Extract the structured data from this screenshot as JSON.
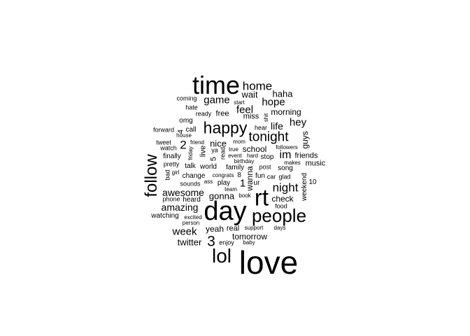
{
  "text_color": "#000000",
  "background_color": "#ffffff",
  "words": [
    {
      "text": "love",
      "weight": 100
    },
    {
      "text": "day",
      "weight": 86
    },
    {
      "text": "time",
      "weight": 80
    },
    {
      "text": "rt",
      "weight": 74
    },
    {
      "text": "lol",
      "weight": 60
    },
    {
      "text": "people",
      "weight": 58
    },
    {
      "text": "follow",
      "weight": 54
    },
    {
      "text": "happy",
      "weight": 48
    },
    {
      "text": "tonight",
      "weight": 40
    },
    {
      "text": "home",
      "weight": 34
    },
    {
      "text": "night",
      "weight": 34
    },
    {
      "text": "3",
      "weight": 34
    },
    {
      "text": "game",
      "weight": 30
    },
    {
      "text": "feel",
      "weight": 30
    },
    {
      "text": "hope",
      "weight": 28
    },
    {
      "text": "awesome",
      "weight": 28
    },
    {
      "text": "amazing",
      "weight": 28
    },
    {
      "text": "week",
      "weight": 28
    },
    {
      "text": "im",
      "weight": 28
    },
    {
      "text": "hey",
      "weight": 28
    },
    {
      "text": "life",
      "weight": 28
    },
    {
      "text": "gonna",
      "weight": 26
    },
    {
      "text": "wait",
      "weight": 26
    },
    {
      "text": "haha",
      "weight": 26
    },
    {
      "text": "twitter",
      "weight": 26
    },
    {
      "text": "nice",
      "weight": 26
    },
    {
      "text": "2",
      "weight": 30
    },
    {
      "text": "yeah",
      "weight": 24
    },
    {
      "text": "school",
      "weight": 24
    },
    {
      "text": "check",
      "weight": 24
    },
    {
      "text": "tomorrow",
      "weight": 24
    },
    {
      "text": "1",
      "weight": 26
    },
    {
      "text": "morning",
      "weight": 22
    },
    {
      "text": "guys",
      "weight": 22
    },
    {
      "text": "wanna",
      "weight": 22
    },
    {
      "text": "music",
      "weight": 20
    },
    {
      "text": "friends",
      "weight": 20
    },
    {
      "text": "miss",
      "weight": 20
    },
    {
      "text": "free",
      "weight": 20
    },
    {
      "text": "real",
      "weight": 20
    },
    {
      "text": "call",
      "weight": 18
    },
    {
      "text": "omg",
      "weight": 18
    },
    {
      "text": "finally",
      "weight": 18
    },
    {
      "text": "weekend",
      "weight": 18
    },
    {
      "text": "world",
      "weight": 18
    },
    {
      "text": "family",
      "weight": 18
    },
    {
      "text": "talk",
      "weight": 18
    },
    {
      "text": "fun",
      "weight": 18
    },
    {
      "text": "watching",
      "weight": 18
    },
    {
      "text": "song",
      "weight": 18
    },
    {
      "text": "heard",
      "weight": 18
    },
    {
      "text": "live",
      "weight": 18
    },
    {
      "text": "5",
      "weight": 18
    },
    {
      "text": "4",
      "weight": 18
    },
    {
      "text": "ur",
      "weight": 18
    },
    {
      "text": "stop",
      "weight": 18
    },
    {
      "text": "change",
      "weight": 16
    },
    {
      "text": "coming",
      "weight": 16
    },
    {
      "text": "tweet",
      "weight": 16
    },
    {
      "text": "pretty",
      "weight": 16
    },
    {
      "text": "play",
      "weight": 16
    },
    {
      "text": "enjoy",
      "weight": 16
    },
    {
      "text": "read",
      "weight": 16
    },
    {
      "text": "bad",
      "weight": 16
    },
    {
      "text": "sounds",
      "weight": 14
    },
    {
      "text": "watch",
      "weight": 14
    },
    {
      "text": "forward",
      "weight": 14
    },
    {
      "text": "ready",
      "weight": 14
    },
    {
      "text": "hate",
      "weight": 14
    },
    {
      "text": "hear",
      "weight": 14
    },
    {
      "text": "post",
      "weight": 14
    },
    {
      "text": "food",
      "weight": 14
    },
    {
      "text": "phone",
      "weight": 14
    },
    {
      "text": "car",
      "weight": 14
    },
    {
      "text": "glad",
      "weight": 14
    },
    {
      "text": "ya",
      "weight": 14
    },
    {
      "text": "true",
      "weight": 14
    },
    {
      "text": "house",
      "weight": 13
    },
    {
      "text": "friend",
      "weight": 13
    },
    {
      "text": "girl",
      "weight": 13
    },
    {
      "text": "congrats",
      "weight": 13
    },
    {
      "text": "8",
      "weight": 14
    },
    {
      "text": "10",
      "weight": 14
    },
    {
      "text": "event",
      "weight": 13
    },
    {
      "text": "hard",
      "weight": 13
    },
    {
      "text": "mom",
      "weight": 13
    },
    {
      "text": "team",
      "weight": 13
    },
    {
      "text": "days",
      "weight": 13
    },
    {
      "text": "support",
      "weight": 13
    },
    {
      "text": "book",
      "weight": 13
    },
    {
      "text": "baby",
      "weight": 13
    },
    {
      "text": "person",
      "weight": 13
    },
    {
      "text": "excited",
      "weight": 13
    },
    {
      "text": "ass",
      "weight": 13
    },
    {
      "text": "makes",
      "weight": 12
    },
    {
      "text": "followers",
      "weight": 12
    },
    {
      "text": "birthday",
      "weight": 13
    },
    {
      "text": "start",
      "weight": 12
    },
    {
      "text": "friday",
      "weight": 12
    },
    {
      "text": "shit",
      "weight": 12
    }
  ]
}
